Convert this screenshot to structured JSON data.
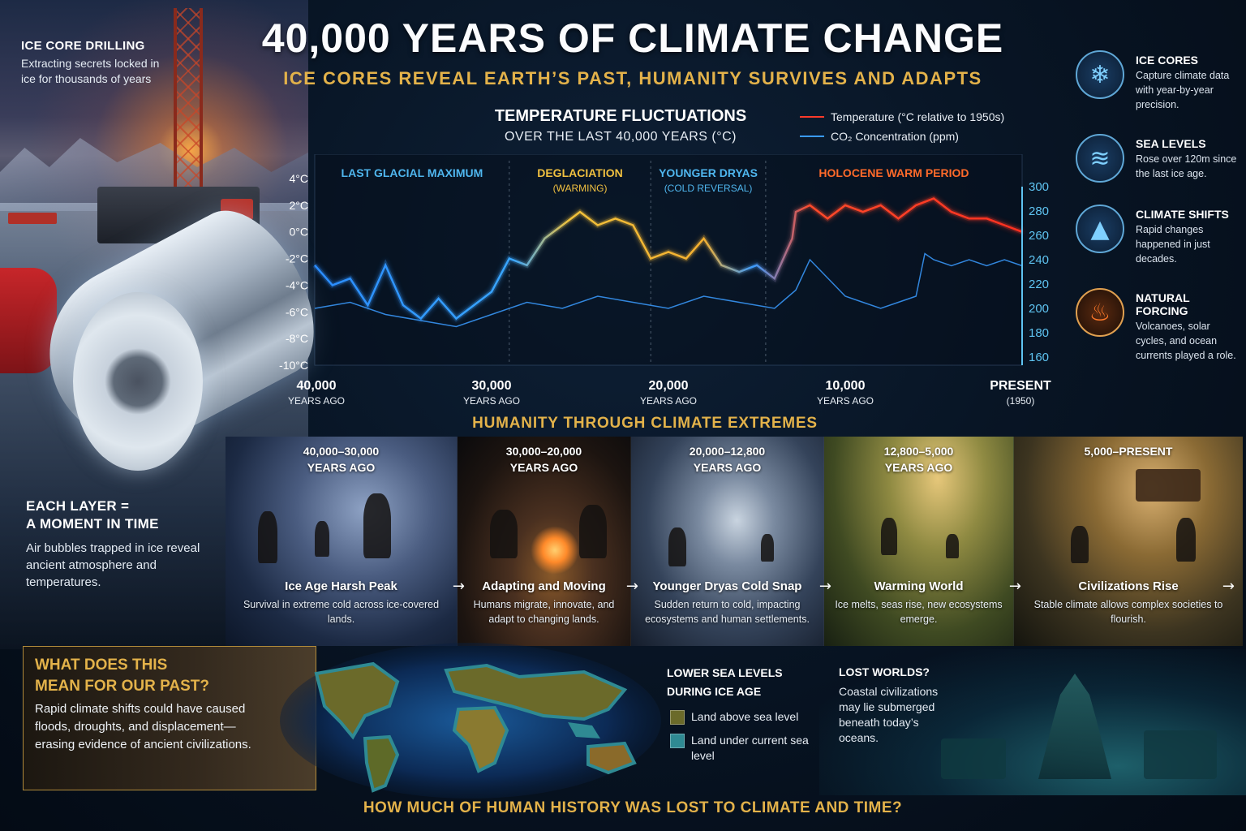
{
  "title": "40,000 YEARS OF CLIMATE CHANGE",
  "subtitle": "ICE CORES REVEAL EARTH’S PAST, HUMANITY SURVIVES AND ADAPTS",
  "left_panel": {
    "drilling_title": "ICE CORE DRILLING",
    "drilling_text": "Extracting secrets locked in ice for thousands of years",
    "layer_title_1": "EACH LAYER =",
    "layer_title_2": "A MOMENT IN TIME",
    "layer_text": "Air bubbles trapped in ice reveal ancient atmosphere and temperatures."
  },
  "chart_data": {
    "type": "line",
    "title": "TEMPERATURE FLUCTUATIONS",
    "subtitle": "OVER THE LAST 40,000 YEARS (°C)",
    "series": [
      {
        "name": "Temperature (°C relative to 1950s)",
        "color": "#ff3a2a",
        "axis": "left",
        "x": [
          40000,
          39000,
          38000,
          37000,
          36000,
          35000,
          34000,
          33000,
          32000,
          31000,
          30000,
          29000,
          28000,
          27000,
          26000,
          25000,
          24000,
          23000,
          22000,
          21000,
          20000,
          19000,
          18000,
          17000,
          16000,
          15000,
          14000,
          13000,
          12800,
          12000,
          11000,
          10000,
          9000,
          8000,
          7000,
          6000,
          5000,
          4000,
          3000,
          2000,
          1000,
          0
        ],
        "values": [
          -2.5,
          -4.0,
          -3.5,
          -5.5,
          -2.5,
          -5.5,
          -6.5,
          -5.0,
          -6.5,
          -5.5,
          -4.5,
          -2.0,
          -2.5,
          -0.5,
          0.5,
          1.5,
          0.5,
          1.0,
          0.5,
          -2.0,
          -1.5,
          -2.0,
          -0.5,
          -2.5,
          -3.0,
          -2.5,
          -3.5,
          -0.5,
          1.5,
          2.0,
          1.0,
          2.0,
          1.5,
          2.0,
          1.0,
          2.0,
          2.5,
          1.5,
          1.0,
          1.0,
          0.5,
          0.0
        ]
      },
      {
        "name": "CO₂ Concentration (ppm)",
        "color": "#3a9bff",
        "axis": "right",
        "x": [
          40000,
          38000,
          36000,
          34000,
          32000,
          30000,
          28000,
          26000,
          24000,
          22000,
          20000,
          18000,
          16000,
          14000,
          12800,
          12000,
          11000,
          10000,
          9000,
          8000,
          7000,
          6000,
          5500,
          5000,
          4000,
          3000,
          2000,
          1000,
          0
        ],
        "values": [
          200,
          205,
          195,
          190,
          185,
          195,
          205,
          200,
          210,
          205,
          200,
          210,
          205,
          200,
          215,
          240,
          225,
          210,
          205,
          200,
          205,
          210,
          245,
          240,
          235,
          240,
          235,
          240,
          235
        ]
      }
    ],
    "y_left": {
      "range": [
        -10,
        4
      ],
      "ticks": [
        "4°C",
        "2°C",
        "0°C",
        "-2°C",
        "-4°C",
        "-6°C",
        "-8°C",
        "-10°C"
      ]
    },
    "y_right": {
      "range": [
        160,
        300
      ],
      "ticks": [
        "300",
        "280",
        "260",
        "240",
        "220",
        "200",
        "180",
        "160"
      ]
    },
    "x_axis": {
      "range": [
        40000,
        0
      ],
      "ticks": [
        {
          "value": 40000,
          "label": "40,000",
          "sub": "YEARS AGO"
        },
        {
          "value": 30000,
          "label": "30,000",
          "sub": "YEARS AGO"
        },
        {
          "value": 20000,
          "label": "20,000",
          "sub": "YEARS AGO"
        },
        {
          "value": 10000,
          "label": "10,000",
          "sub": "YEARS AGO"
        },
        {
          "value": 0,
          "label": "PRESENT",
          "sub": "(1950)"
        }
      ]
    },
    "periods": [
      {
        "label": "LAST GLACIAL MAXIMUM",
        "note": "",
        "start": 40000,
        "end": 29000,
        "color": "#4fb6ee"
      },
      {
        "label": "DEGLACIATION",
        "note": "(WARMING)",
        "start": 29000,
        "end": 21000,
        "color": "#f0c040"
      },
      {
        "label": "YOUNGER DRYAS",
        "note": "(COLD REVERSAL)",
        "start": 21000,
        "end": 14500,
        "color": "#4fb6ee"
      },
      {
        "label": "HOLOCENE WARM PERIOD",
        "note": "",
        "start": 14500,
        "end": 0,
        "color": "#ff6a2a"
      }
    ],
    "grid": false,
    "legend_position": "top-right"
  },
  "sidebar": [
    {
      "title": "ICE CORES",
      "desc": "Capture climate data with year-by-year precision.",
      "icon": "snowflake-icon",
      "glyph": "❄"
    },
    {
      "title": "SEA LEVELS",
      "desc": "Rose over 120m since the last ice age.",
      "icon": "wave-icon",
      "glyph": "≋"
    },
    {
      "title": "CLIMATE SHIFTS",
      "desc": "Rapid changes happened in just decades.",
      "icon": "mountain-icon",
      "glyph": "▲"
    },
    {
      "title": "NATURAL FORCING",
      "desc": "Volcanoes, solar cycles, and ocean currents played a role.",
      "icon": "fire-icon",
      "glyph": "♨"
    }
  ],
  "humanity": {
    "title": "HUMANITY THROUGH CLIMATE EXTREMES",
    "arrow": "→",
    "eras": [
      {
        "range": "40,000–30,000\nYEARS AGO",
        "name": "Ice Age Harsh Peak",
        "desc": "Survival in extreme cold across ice-covered lands."
      },
      {
        "range": "30,000–20,000\nYEARS AGO",
        "name": "Adapting and Moving",
        "desc": "Humans migrate, innovate, and adapt to changing lands."
      },
      {
        "range": "20,000–12,800\nYEARS AGO",
        "name": "Younger Dryas Cold Snap",
        "desc": "Sudden return to cold, impacting ecosystems and human settlements."
      },
      {
        "range": "12,800–5,000\nYEARS AGO",
        "name": "Warming World",
        "desc": "Ice melts, seas rise, new ecosystems emerge."
      },
      {
        "range": "5,000–PRESENT",
        "name": "Civilizations Rise",
        "desc": "Stable climate allows complex societies to flourish."
      }
    ]
  },
  "bottom": {
    "past_title_1": "WHAT DOES THIS",
    "past_title_2": "MEAN FOR OUR PAST?",
    "past_text": "Rapid climate shifts could have caused floods, droughts, and displacement—erasing evidence of ancient civilizations.",
    "sea_title_1": "LOWER SEA LEVELS",
    "sea_title_2": "DURING ICE AGE",
    "sea_legend": [
      {
        "label": "Land above sea level",
        "color": "#6b6a2a"
      },
      {
        "label": "Land under current sea level",
        "color": "#2f8a93"
      }
    ],
    "lost_title": "LOST WORLDS?",
    "lost_text": "Coastal civilizations may lie submerged beneath today’s oceans.",
    "question": "HOW MUCH OF HUMAN HISTORY WAS LOST TO CLIMATE AND TIME?"
  }
}
